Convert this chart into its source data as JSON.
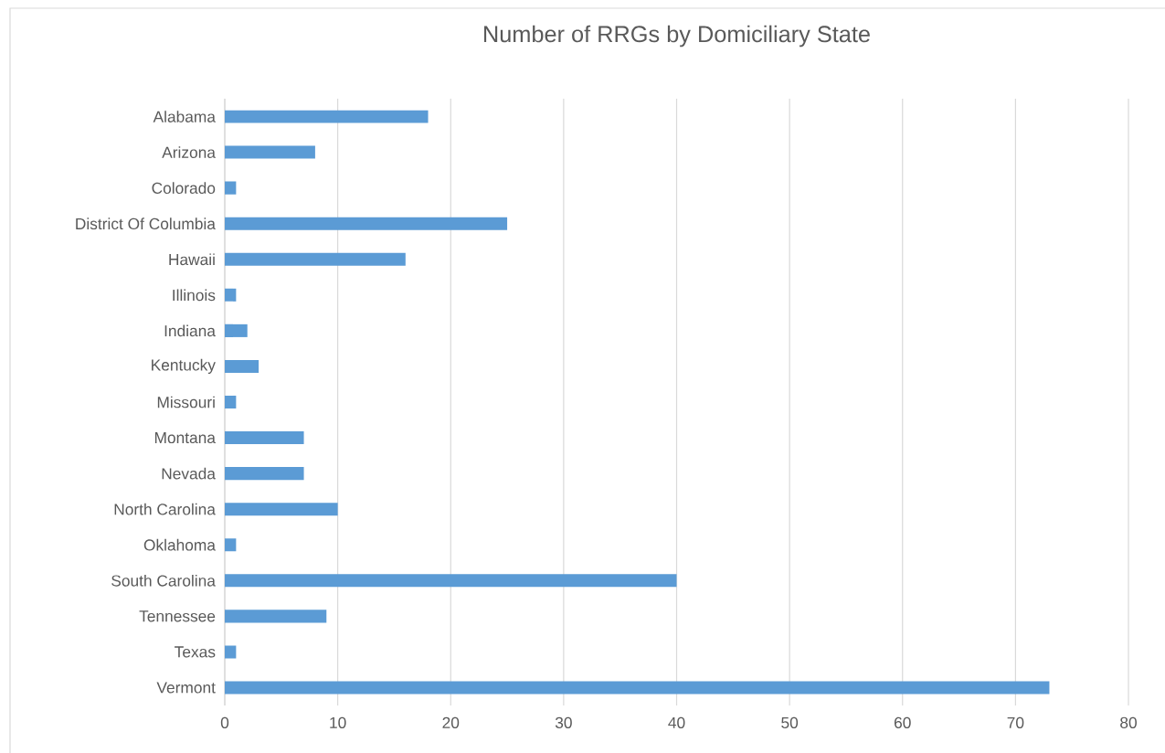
{
  "chart_data": {
    "type": "bar",
    "orientation": "horizontal",
    "title": "Number of RRGs by Domiciliary State",
    "categories": [
      "Alabama",
      "Arizona",
      "Colorado",
      "District Of Columbia",
      "Hawaii",
      "Illinois",
      "Indiana",
      "Kentucky",
      "Missouri",
      "Montana",
      "Nevada",
      "North Carolina",
      "Oklahoma",
      "South Carolina",
      "Tennessee",
      "Texas",
      "Vermont"
    ],
    "values": [
      18,
      8,
      1,
      25,
      16,
      1,
      2,
      3,
      1,
      7,
      7,
      10,
      1,
      40,
      9,
      1,
      73
    ],
    "color": "#5b9bd5",
    "xlim": [
      0,
      80
    ],
    "xticks": [
      0,
      10,
      20,
      30,
      40,
      50,
      60,
      70,
      80
    ],
    "grid": "x"
  }
}
